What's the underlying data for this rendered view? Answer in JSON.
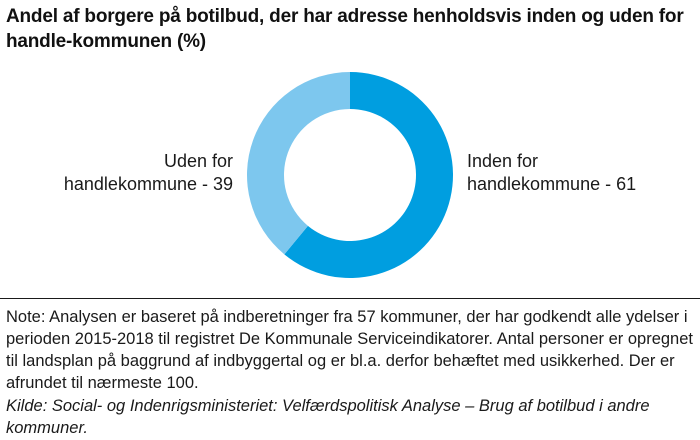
{
  "chart_data": {
    "type": "pie",
    "subtype": "donut",
    "title": "Andel af borgere på botilbud, der har adresse henholdsvis inden og uden for handle-kommunen (%)",
    "slices": [
      {
        "label": "Inden for handlekommune - 61",
        "label_lines": [
          "Inden for",
          "handlekommune - 61"
        ],
        "value": 61,
        "color": "#009ee0",
        "label_side": "right"
      },
      {
        "label": "Uden for handlekommune - 39",
        "label_lines": [
          "Uden for",
          "handlekommune - 39"
        ],
        "value": 39,
        "color": "#7dc7ee",
        "label_side": "left"
      }
    ],
    "unit": "%"
  },
  "note": "Note: Analysen er baseret på indberetninger fra 57 kommuner, der har godkendt alle ydelser i perioden 2015-2018 til registret De Kommunale Serviceindikatorer. Antal personer er opregnet til landsplan på baggrund af indbyggertal og er bl.a. derfor behæftet med usikkerhed. Der er afrundet til nærmeste 100.",
  "source": "Kilde: Social- og Indenrigsministeriet: Velfærdspolitisk Analyse – Brug af botilbud i andre kommuner."
}
